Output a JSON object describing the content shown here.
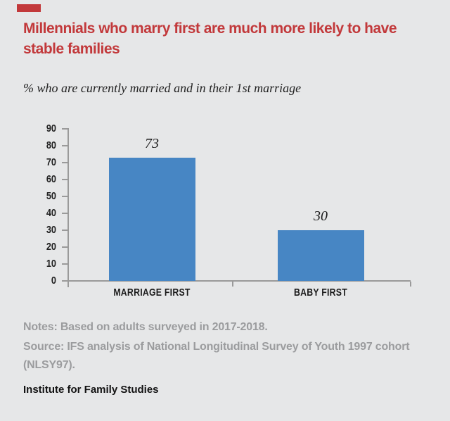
{
  "page": {
    "background": "#E6E7E8"
  },
  "brand": {
    "tab_color": "#C2393B",
    "footer": "Institute for Family Studies"
  },
  "header": {
    "title": "Millennials who marry first are much more likely to have stable families",
    "title_color": "#C2393B"
  },
  "chart_data": {
    "type": "bar",
    "title": "Millennials who marry first are much more likely to have stable families",
    "subtitle": "% who are currently married and in their 1st marriage",
    "categories": [
      "MARRIAGE FIRST",
      "BABY FIRST"
    ],
    "values": [
      73,
      30
    ],
    "value_labels": [
      "73",
      "30"
    ],
    "xlabel": "",
    "ylabel": "",
    "ylim": [
      0,
      90
    ],
    "yticks": [
      0,
      10,
      20,
      30,
      40,
      50,
      60,
      70,
      80,
      90
    ],
    "grid": false,
    "legend": null,
    "bar_color": "#4786C4",
    "axis_color": "#9A9A9A",
    "tick_label_color": "#1F1F1F"
  },
  "notes": {
    "line1": "Notes: Based on adults surveyed in 2017-2018.",
    "source": "Source: IFS analysis of National Longitudinal Survey of Youth 1997 cohort (NLSY97).",
    "text_color": "#9B9C9E"
  }
}
